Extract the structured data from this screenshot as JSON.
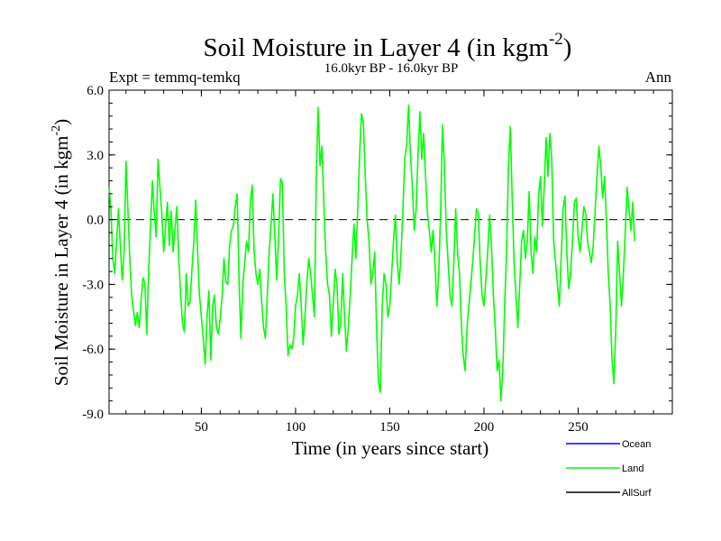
{
  "chart_data": {
    "type": "line",
    "title": "Soil Moisture in Layer 4 (in kgm",
    "title_sup": "-2",
    "title_close": ")",
    "subtitle_left": "Expt = temmq-temkq",
    "subtitle_center": "16.0kyr BP - 16.0kyr BP",
    "subtitle_right": "Ann",
    "xlabel": "Time (in years since start)",
    "ylabel": "Soil Moisture in Layer 4 (in kgm",
    "ylabel_sup": "-2",
    "ylabel_close": ")",
    "xlim": [
      1,
      300
    ],
    "ylim": [
      -9,
      6
    ],
    "xticks": [
      50,
      100,
      150,
      200,
      250
    ],
    "xtick_labels": [
      "50",
      "100",
      "150",
      "200",
      "250"
    ],
    "yticks": [
      6,
      3,
      0,
      -3,
      -6,
      -9
    ],
    "ytick_labels": [
      "6.0",
      "3.0",
      "0.0",
      "-3.0",
      "-6.0",
      "-9.0"
    ],
    "zero_line": true,
    "legend": [
      {
        "name": "Ocean",
        "color": "#0000ff"
      },
      {
        "name": "Land",
        "color": "#00ff00"
      },
      {
        "name": "AllSurf",
        "color": "#000000"
      }
    ],
    "series": [
      {
        "name": "Land",
        "color": "#00ff00",
        "x_start": 1,
        "x_step": 1,
        "values": [
          1.5,
          0.5,
          -1.8,
          -2.5,
          -1.0,
          0.5,
          -1.2,
          -2.8,
          -1.5,
          2.7,
          0.5,
          -1.8,
          -3.5,
          -4.2,
          -4.9,
          -4.3,
          -5.0,
          -3.8,
          -2.7,
          -2.9,
          -5.3,
          -2.5,
          -0.3,
          1.8,
          0.3,
          -0.8,
          2.8,
          1.5,
          0.3,
          -1.5,
          -0.3,
          0.8,
          -1.2,
          0.4,
          -1.5,
          -0.4,
          0.6,
          -1.8,
          -3.5,
          -4.8,
          -5.2,
          -2.5,
          -4.0,
          -3.8,
          -2.3,
          -1.0,
          0.9,
          -1.5,
          -3.5,
          -4.5,
          -5.5,
          -6.7,
          -4.5,
          -3.3,
          -6.5,
          -4.0,
          -3.5,
          -5.0,
          -5.3,
          -4.6,
          -3.6,
          -1.8,
          -2.9,
          -3.0,
          -1.2,
          -0.5,
          -0.3,
          0.6,
          1.2,
          -2.8,
          -5.5,
          -3.0,
          -2.0,
          -1.0,
          -1.5,
          0.8,
          1.6,
          -1.5,
          -2.5,
          -3.0,
          -2.3,
          -3.8,
          -5.0,
          -5.5,
          -3.5,
          -1.5,
          -0.2,
          1.2,
          -0.8,
          -2.8,
          -0.8,
          1.9,
          1.7,
          -2.5,
          -4.0,
          -6.3,
          -5.8,
          -6.0,
          -5.5,
          -4.0,
          -3.5,
          -2.5,
          -4.0,
          -5.8,
          -4.5,
          -2.9,
          -1.8,
          -2.5,
          -3.5,
          -4.5,
          2.0,
          5.2,
          2.5,
          3.4,
          0.8,
          -1.5,
          -3.0,
          -3.5,
          -5.4,
          -4.0,
          -2.3,
          -3.0,
          -5.3,
          -4.8,
          -2.5,
          -4.5,
          -6.1,
          -5.0,
          -3.5,
          -1.8,
          -0.2,
          -1.8,
          0.5,
          3.0,
          4.9,
          4.5,
          2.0,
          0.0,
          -1.0,
          -3.0,
          -2.5,
          -1.5,
          -5.0,
          -7.5,
          -8.0,
          -4.0,
          -2.5,
          -3.0,
          -4.5,
          -4.0,
          -2.5,
          -1.0,
          0.2,
          -2.0,
          -3.0,
          -1.5,
          0.5,
          2.8,
          3.5,
          5.3,
          3.0,
          1.5,
          -0.5,
          0.5,
          3.0,
          5.0,
          2.8,
          4.0,
          2.0,
          0.3,
          -0.5,
          -1.5,
          -0.5,
          -2.0,
          -4.0,
          -2.5,
          0.3,
          4.4,
          2.5,
          -0.5,
          -2.0,
          -3.5,
          -4.0,
          -2.0,
          0.5,
          -1.5,
          -2.5,
          -4.8,
          -6.3,
          -7.0,
          -5.0,
          -4.0,
          -3.0,
          -2.0,
          -0.8,
          0.5,
          0.3,
          -2.0,
          -3.5,
          -4.0,
          -2.8,
          -1.5,
          0.2,
          -1.2,
          -3.5,
          -5.0,
          -7.0,
          -6.5,
          -8.4,
          -7.0,
          -4.0,
          -1.5,
          2.5,
          4.3,
          1.0,
          -2.0,
          -3.5,
          -5.0,
          -3.0,
          -1.0,
          -0.5,
          -1.8,
          -1.0,
          1.3,
          -1.5,
          -2.5,
          -0.8,
          -1.5,
          1.1,
          2.0,
          -0.3,
          1.5,
          3.8,
          2.0,
          4.0,
          2.8,
          -1.0,
          -2.0,
          -3.0,
          -4.0,
          -1.8,
          0.5,
          1.1,
          -1.5,
          -3.2,
          -2.5,
          -1.0,
          0.8,
          1.0,
          -0.8,
          -1.5,
          -0.5,
          0.6,
          0.3,
          -1.0,
          -1.5,
          -2.0,
          -1.2,
          0.4,
          2.0,
          3.4,
          2.5,
          1.0,
          2.0,
          0.0,
          -2.5,
          -4.0,
          -6.5,
          -7.6,
          -5.0,
          -1.0,
          -2.5,
          -4.0,
          -2.5,
          -0.6,
          1.5,
          0.5,
          -0.5,
          0.8,
          -1.0
        ]
      }
    ]
  }
}
